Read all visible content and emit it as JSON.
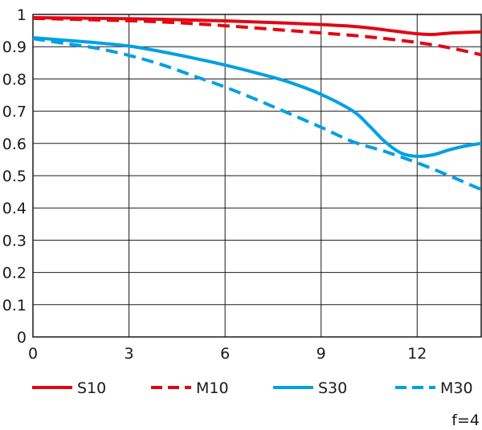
{
  "chart_data": {
    "type": "line",
    "xlabel": "",
    "ylabel": "",
    "xlim": [
      0,
      14
    ],
    "ylim": [
      0,
      1
    ],
    "x_ticks": [
      "0",
      "3",
      "6",
      "9",
      "12"
    ],
    "y_ticks": [
      "0",
      "0.1",
      "0.2",
      "0.3",
      "0.4",
      "0.5",
      "0.6",
      "0.7",
      "0.8",
      "0.9",
      "1"
    ],
    "grid": true,
    "legend_placement": "bottom",
    "annotation": "f=4",
    "series": [
      {
        "name": "S10",
        "color": "#e30613",
        "dash": "solid",
        "x": [
          0,
          2,
          4,
          6,
          8,
          10,
          11,
          12,
          12.5,
          13,
          14
        ],
        "y": [
          0.99,
          0.988,
          0.985,
          0.98,
          0.973,
          0.963,
          0.952,
          0.94,
          0.938,
          0.942,
          0.946
        ]
      },
      {
        "name": "M10",
        "color": "#e30613",
        "dash": "dashed",
        "x": [
          0,
          2,
          4,
          6,
          8,
          10,
          11,
          12,
          13,
          14
        ],
        "y": [
          0.988,
          0.983,
          0.977,
          0.965,
          0.95,
          0.935,
          0.925,
          0.913,
          0.897,
          0.875
        ]
      },
      {
        "name": "S30",
        "color": "#00a0e3",
        "dash": "solid",
        "x": [
          0,
          1,
          2,
          3,
          4,
          5,
          6,
          7,
          8,
          9,
          10,
          10.5,
          11,
          11.5,
          12,
          12.5,
          13,
          13.5,
          14
        ],
        "y": [
          0.928,
          0.92,
          0.912,
          0.902,
          0.885,
          0.865,
          0.843,
          0.818,
          0.79,
          0.752,
          0.7,
          0.655,
          0.605,
          0.57,
          0.56,
          0.565,
          0.58,
          0.592,
          0.6
        ]
      },
      {
        "name": "M30",
        "color": "#00a0e3",
        "dash": "dashed",
        "x": [
          0,
          1,
          2,
          3,
          4,
          5,
          6,
          7,
          8,
          9,
          10,
          11,
          12,
          13,
          14
        ],
        "y": [
          0.925,
          0.91,
          0.895,
          0.873,
          0.845,
          0.81,
          0.775,
          0.735,
          0.693,
          0.65,
          0.605,
          0.575,
          0.54,
          0.5,
          0.457
        ]
      }
    ]
  }
}
